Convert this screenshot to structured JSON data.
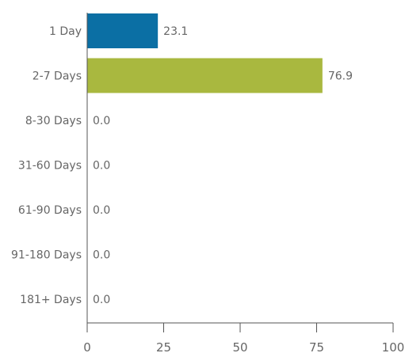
{
  "chart_data": {
    "type": "bar",
    "orientation": "horizontal",
    "title": "",
    "categories": [
      "1 Day",
      "2-7 Days",
      "8-30 Days",
      "31-60 Days",
      "61-90 Days",
      "91-180 Days",
      "181+ Days"
    ],
    "values": [
      23.1,
      76.9,
      0.0,
      0.0,
      0.0,
      0.0,
      0.0
    ],
    "value_labels": [
      "23.1",
      "76.9",
      "0.0",
      "0.0",
      "0.0",
      "0.0",
      "0.0"
    ],
    "bar_colors": [
      "#0b6fa4",
      "#a9b83f",
      "#a9b83f",
      "#a9b83f",
      "#a9b83f",
      "#a9b83f",
      "#a9b83f"
    ],
    "xlim": [
      0,
      100
    ],
    "x_ticks": [
      0,
      25,
      50,
      75,
      100
    ],
    "grid": false,
    "legend": "none"
  }
}
